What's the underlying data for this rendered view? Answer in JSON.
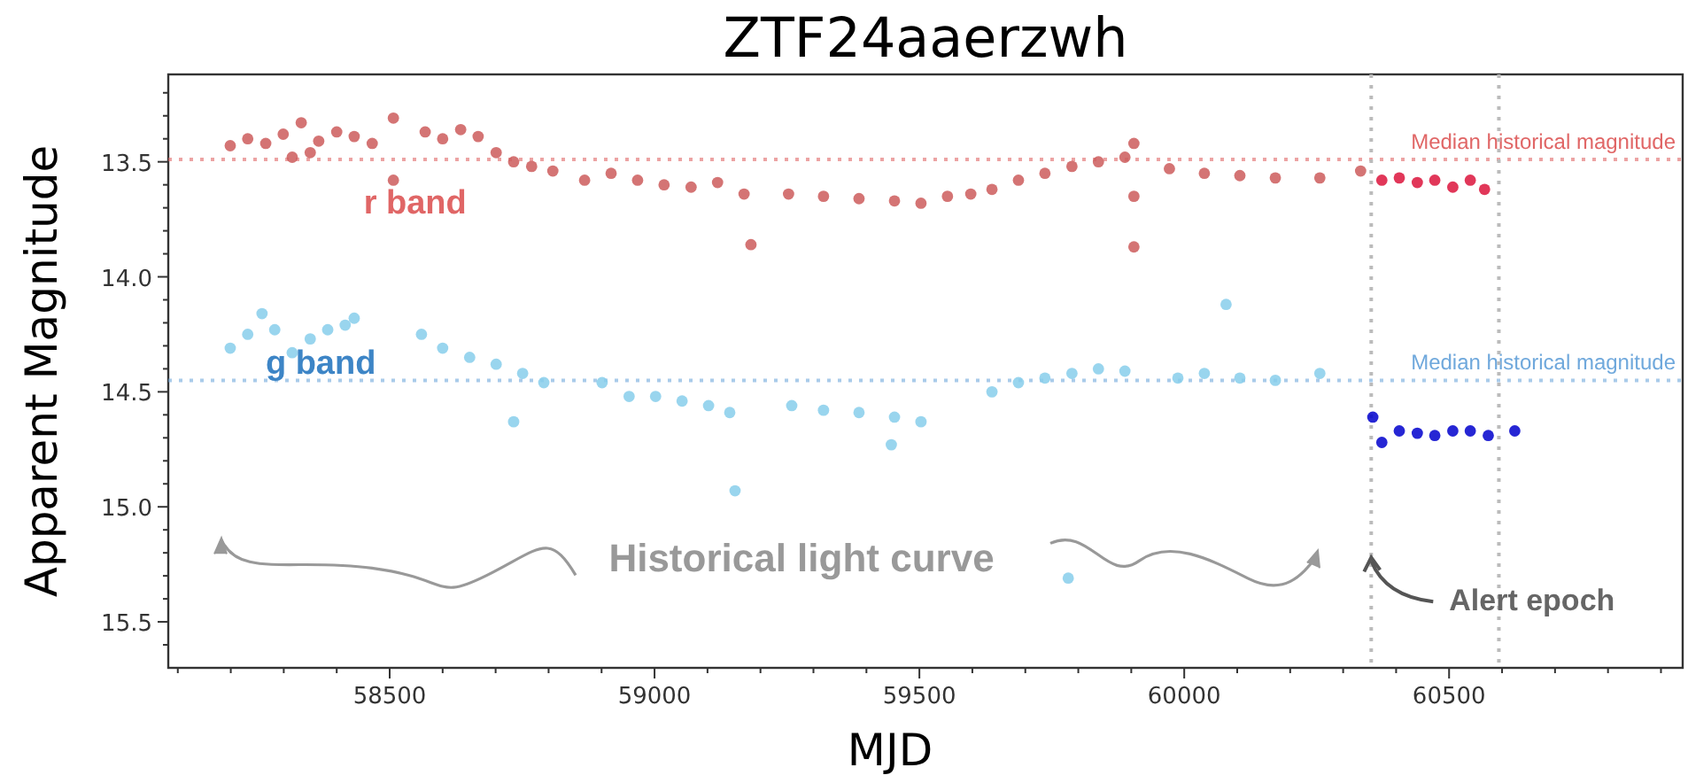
{
  "chart_data": {
    "type": "scatter",
    "title": "ZTF24aaerzwh",
    "xlabel": "MJD",
    "ylabel": "Apparent Magnitude",
    "marker": "circle",
    "grid": false,
    "xlim": [
      58082,
      60941
    ],
    "ylim": [
      15.7,
      13.12
    ],
    "xticks": [
      {
        "value": 58100,
        "label": null
      },
      {
        "value": 58200,
        "label": null
      },
      {
        "value": 58300,
        "label": null
      },
      {
        "value": 58400,
        "label": null
      },
      58500,
      {
        "value": 58600,
        "label": null
      },
      {
        "value": 58700,
        "label": null
      },
      {
        "value": 58800,
        "label": null
      },
      {
        "value": 58900,
        "label": null
      },
      59000,
      {
        "value": 59100,
        "label": null
      },
      {
        "value": 59200,
        "label": null
      },
      {
        "value": 59300,
        "label": null
      },
      {
        "value": 59400,
        "label": null
      },
      59500,
      {
        "value": 59600,
        "label": null
      },
      {
        "value": 59700,
        "label": null
      },
      {
        "value": 59800,
        "label": null
      },
      {
        "value": 59900,
        "label": null
      },
      60000,
      {
        "value": 60100,
        "label": null
      },
      {
        "value": 60200,
        "label": null
      },
      {
        "value": 60300,
        "label": null
      },
      {
        "value": 60400,
        "label": null
      },
      60500,
      {
        "value": 60600,
        "label": null
      },
      {
        "value": 60700,
        "label": null
      },
      {
        "value": 60800,
        "label": null
      },
      {
        "value": 60900,
        "label": null
      }
    ],
    "yticks": [
      {
        "value": 13.2,
        "label": null
      },
      {
        "value": 13.3,
        "label": null
      },
      {
        "value": 13.4,
        "label": null
      },
      {
        "value": 13.5,
        "label": "13.5"
      },
      {
        "value": 13.6,
        "label": null
      },
      {
        "value": 13.7,
        "label": null
      },
      {
        "value": 13.8,
        "label": null
      },
      {
        "value": 13.9,
        "label": null
      },
      {
        "value": 14.0,
        "label": "14.0"
      },
      {
        "value": 14.1,
        "label": null
      },
      {
        "value": 14.2,
        "label": null
      },
      {
        "value": 14.3,
        "label": null
      },
      {
        "value": 14.4,
        "label": null
      },
      {
        "value": 14.5,
        "label": "14.5"
      },
      {
        "value": 14.6,
        "label": null
      },
      {
        "value": 14.7,
        "label": null
      },
      {
        "value": 14.8,
        "label": null
      },
      {
        "value": 14.9,
        "label": null
      },
      {
        "value": 15.0,
        "label": "15.0"
      },
      {
        "value": 15.1,
        "label": null
      },
      {
        "value": 15.2,
        "label": null
      },
      {
        "value": 15.3,
        "label": null
      },
      {
        "value": 15.4,
        "label": null
      },
      {
        "value": 15.5,
        "label": "15.5"
      },
      {
        "value": 15.6,
        "label": null
      }
    ],
    "series": [
      {
        "name": "r band",
        "color": "#cd5c5c",
        "x": [
          58199,
          58232,
          58266,
          58299,
          58316,
          58333,
          58350,
          58366,
          58400,
          58433,
          58467,
          58507,
          58507,
          58567,
          58600,
          58634,
          58667,
          58701,
          58734,
          58768,
          58808,
          58868,
          58918,
          58968,
          59018,
          59069,
          59119,
          59169,
          59182,
          59253,
          59319,
          59386,
          59453,
          59503,
          59553,
          59597,
          59637,
          59687,
          59737,
          59788,
          59838,
          59888,
          59905,
          59905,
          59905,
          59972,
          60038,
          60105,
          60172,
          60256,
          60333
        ],
        "values": [
          13.43,
          13.4,
          13.42,
          13.38,
          13.48,
          13.33,
          13.46,
          13.41,
          13.37,
          13.39,
          13.42,
          13.31,
          13.58,
          13.37,
          13.4,
          13.36,
          13.39,
          13.46,
          13.5,
          13.52,
          13.54,
          13.58,
          13.55,
          13.58,
          13.6,
          13.61,
          13.59,
          13.64,
          13.86,
          13.64,
          13.65,
          13.66,
          13.67,
          13.68,
          13.65,
          13.64,
          13.62,
          13.58,
          13.55,
          13.52,
          13.5,
          13.48,
          13.42,
          13.65,
          13.87,
          13.53,
          13.55,
          13.56,
          13.57,
          13.57,
          13.54
        ]
      },
      {
        "color": "#dc143c",
        "x": [
          60373,
          60406,
          60440,
          60473,
          60507,
          60540,
          60567
        ],
        "values": [
          13.58,
          13.57,
          13.59,
          13.58,
          13.61,
          13.58,
          13.62
        ]
      },
      {
        "name": "g band",
        "color": "#87ceeb",
        "x": [
          58199,
          58232,
          58259,
          58283,
          58316,
          58350,
          58383,
          58416,
          58433,
          58560,
          58600,
          58651,
          58701,
          58734,
          58751,
          58791,
          58901,
          58952,
          59002,
          59052,
          59102,
          59142,
          59152,
          59259,
          59319,
          59386,
          59447,
          59453,
          59503,
          59637,
          59687,
          59737,
          59781,
          59788,
          59838,
          59888,
          59988,
          60038,
          60079,
          60105,
          60172,
          60256
        ],
        "values": [
          14.31,
          14.25,
          14.16,
          14.23,
          14.33,
          14.27,
          14.23,
          14.21,
          14.18,
          14.25,
          14.31,
          14.35,
          14.38,
          14.63,
          14.42,
          14.46,
          14.46,
          14.52,
          14.52,
          14.54,
          14.56,
          14.59,
          14.93,
          14.56,
          14.58,
          14.59,
          14.73,
          14.61,
          14.63,
          14.5,
          14.46,
          14.44,
          15.31,
          14.42,
          14.4,
          14.41,
          14.44,
          14.42,
          14.12,
          14.44,
          14.45,
          14.42
        ]
      },
      {
        "color": "#0000cd",
        "x": [
          60356,
          60373,
          60406,
          60440,
          60473,
          60507,
          60540,
          60574,
          60624
        ],
        "values": [
          14.61,
          14.72,
          14.67,
          14.68,
          14.69,
          14.67,
          14.67,
          14.69,
          14.67
        ]
      }
    ],
    "ref_lines": [
      {
        "axis": "y",
        "value": 13.49,
        "label": "Median historical magnitude",
        "color": "#e06666",
        "line_style": "dotted"
      },
      {
        "axis": "y",
        "value": 14.45,
        "label": "Median historical magnitude",
        "color": "#6fa8dc",
        "line_style": "dotted"
      },
      {
        "axis": "x",
        "value": 60353,
        "color": "#bbbbbb",
        "line_style": "dotted"
      },
      {
        "axis": "x",
        "value": 60594,
        "color": "#bbbbbb",
        "line_style": "dotted"
      }
    ],
    "annotations": [
      "Historical light curve",
      {
        "text": "Alert epoch",
        "x": 60353,
        "y": 15.22
      }
    ]
  }
}
